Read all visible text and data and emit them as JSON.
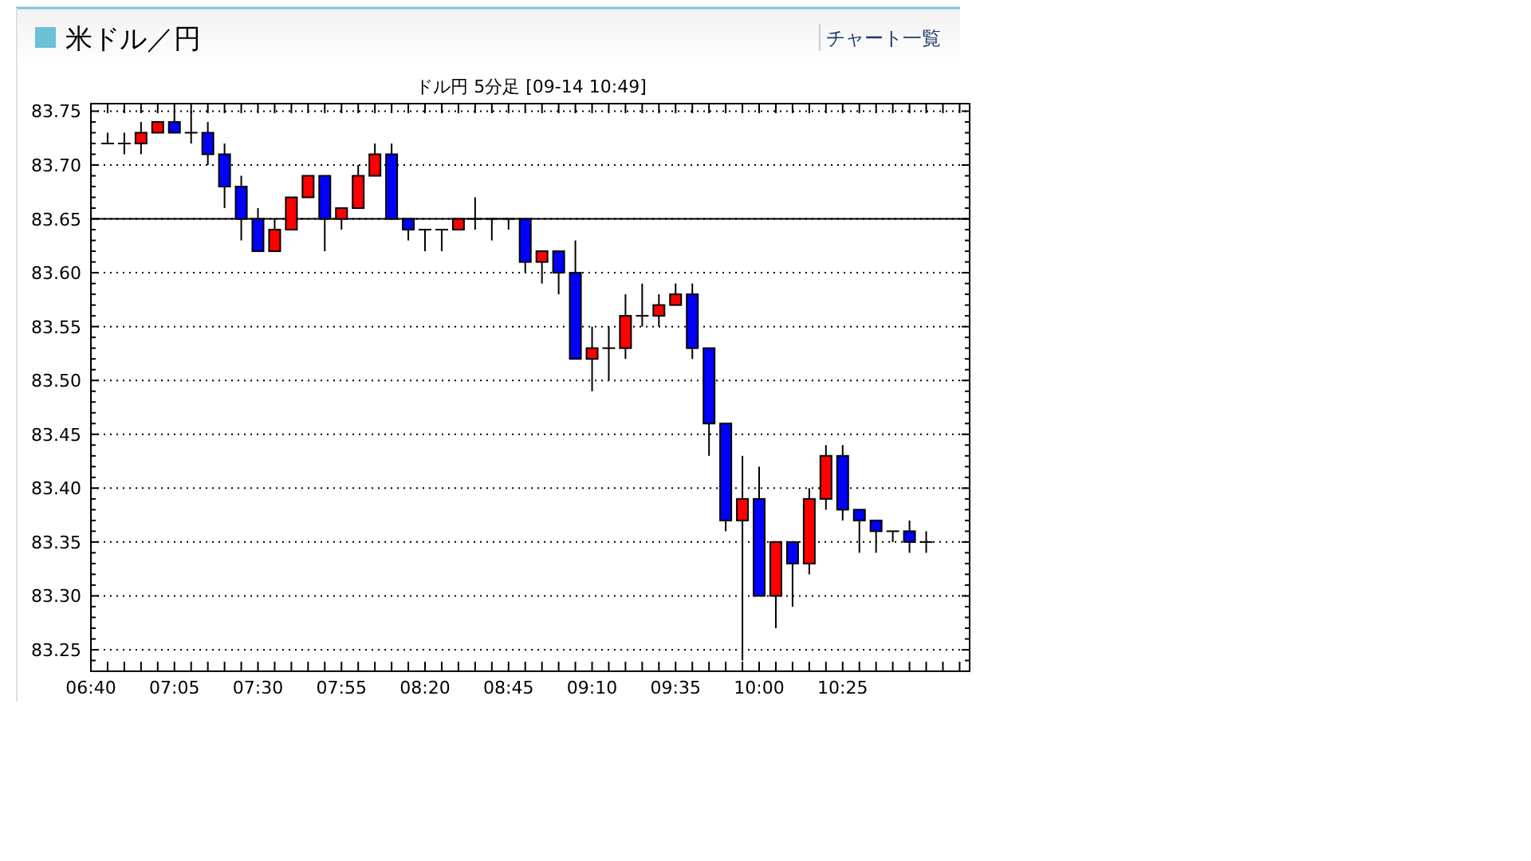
{
  "chart_data": {
    "type": "candlestick",
    "title": "米ドル／円",
    "subtitle": "ドル円 5分足 [09-14  10:49]",
    "annotations": [
      "チャート一覧"
    ],
    "x": [
      6.75,
      6.8333,
      6.9167,
      7,
      7.0833,
      7.1667,
      7.25,
      7.3333,
      7.4167,
      7.5,
      7.5833,
      7.6667,
      7.75,
      7.8333,
      7.9167,
      8,
      8.0833,
      8.1667,
      8.25,
      8.3333,
      8.4167,
      8.5,
      8.5833,
      8.6667,
      8.75,
      8.8333,
      8.9167,
      9,
      9.0833,
      9.1667,
      9.25,
      9.3333,
      9.4167,
      9.5,
      9.5833,
      9.6667,
      9.75,
      9.8333,
      9.9167,
      10,
      10.0833,
      10.1667,
      10.25,
      10.3333,
      10.4167,
      10.5,
      10.5833,
      10.6667,
      10.75,
      10.8333
    ],
    "ohlc": [
      [
        83.72,
        83.73,
        83.72,
        83.72
      ],
      [
        83.72,
        83.73,
        83.71,
        83.72
      ],
      [
        83.72,
        83.74,
        83.71,
        83.73
      ],
      [
        83.73,
        83.74,
        83.73,
        83.74
      ],
      [
        83.74,
        83.75,
        83.73,
        83.73
      ],
      [
        83.73,
        83.75,
        83.72,
        83.73
      ],
      [
        83.73,
        83.74,
        83.7,
        83.71
      ],
      [
        83.71,
        83.72,
        83.66,
        83.68
      ],
      [
        83.68,
        83.69,
        83.63,
        83.65
      ],
      [
        83.65,
        83.66,
        83.62,
        83.62
      ],
      [
        83.62,
        83.65,
        83.62,
        83.64
      ],
      [
        83.64,
        83.67,
        83.64,
        83.67
      ],
      [
        83.67,
        83.69,
        83.67,
        83.69
      ],
      [
        83.69,
        83.69,
        83.62,
        83.65
      ],
      [
        83.65,
        83.66,
        83.64,
        83.66
      ],
      [
        83.66,
        83.7,
        83.66,
        83.69
      ],
      [
        83.69,
        83.72,
        83.69,
        83.71
      ],
      [
        83.71,
        83.72,
        83.65,
        83.65
      ],
      [
        83.65,
        83.65,
        83.63,
        83.64
      ],
      [
        83.64,
        83.64,
        83.62,
        83.64
      ],
      [
        83.64,
        83.64,
        83.62,
        83.64
      ],
      [
        83.64,
        83.65,
        83.64,
        83.65
      ],
      [
        83.65,
        83.67,
        83.64,
        83.65
      ],
      [
        83.65,
        83.65,
        83.63,
        83.65
      ],
      [
        83.65,
        83.65,
        83.64,
        83.65
      ],
      [
        83.65,
        83.65,
        83.6,
        83.61
      ],
      [
        83.61,
        83.62,
        83.59,
        83.62
      ],
      [
        83.62,
        83.62,
        83.58,
        83.6
      ],
      [
        83.6,
        83.63,
        83.52,
        83.52
      ],
      [
        83.52,
        83.55,
        83.49,
        83.53
      ],
      [
        83.53,
        83.55,
        83.5,
        83.53
      ],
      [
        83.53,
        83.58,
        83.52,
        83.56
      ],
      [
        83.56,
        83.59,
        83.55,
        83.56
      ],
      [
        83.56,
        83.58,
        83.55,
        83.57
      ],
      [
        83.57,
        83.59,
        83.57,
        83.58
      ],
      [
        83.58,
        83.59,
        83.52,
        83.53
      ],
      [
        83.53,
        83.53,
        83.43,
        83.46
      ],
      [
        83.46,
        83.46,
        83.36,
        83.37
      ],
      [
        83.37,
        83.43,
        83.24,
        83.39
      ],
      [
        83.39,
        83.42,
        83.3,
        83.3
      ],
      [
        83.3,
        83.35,
        83.27,
        83.35
      ],
      [
        83.35,
        83.35,
        83.29,
        83.33
      ],
      [
        83.33,
        83.4,
        83.32,
        83.39
      ],
      [
        83.39,
        83.44,
        83.38,
        83.43
      ],
      [
        83.43,
        83.44,
        83.37,
        83.38
      ],
      [
        83.38,
        83.38,
        83.34,
        83.37
      ],
      [
        83.37,
        83.37,
        83.34,
        83.36
      ],
      [
        83.36,
        83.36,
        83.35,
        83.36
      ],
      [
        83.36,
        83.37,
        83.34,
        83.35
      ],
      [
        83.35,
        83.36,
        83.34,
        83.35
      ]
    ],
    "colors": [
      "#000000",
      "#000000",
      "#ff0000",
      "#ff0000",
      "#0000ff",
      "#000000",
      "#0000ff",
      "#0000ff",
      "#0000ff",
      "#0000ff",
      "#ff0000",
      "#ff0000",
      "#ff0000",
      "#0000ff",
      "#ff0000",
      "#ff0000",
      "#ff0000",
      "#0000ff",
      "#0000ff",
      "#000000",
      "#000000",
      "#ff0000",
      "#000000",
      "#000000",
      "#000000",
      "#0000ff",
      "#ff0000",
      "#0000ff",
      "#0000ff",
      "#ff0000",
      "#000000",
      "#ff0000",
      "#000000",
      "#ff0000",
      "#ff0000",
      "#0000ff",
      "#0000ff",
      "#0000ff",
      "#ff0000",
      "#0000ff",
      "#ff0000",
      "#0000ff",
      "#ff0000",
      "#ff0000",
      "#0000ff",
      "#0000ff",
      "#0000ff",
      "#000000",
      "#0000ff",
      "#000000"
    ],
    "xlim": [
      6.6667,
      11.05
    ],
    "xticks": [
      {
        "value": 6.6667,
        "label": "06:40"
      },
      {
        "value": 6.75,
        "label": null
      },
      {
        "value": 6.8333,
        "label": null
      },
      {
        "value": 6.9167,
        "label": null
      },
      {
        "value": 7,
        "label": null
      },
      {
        "value": 7.0833,
        "label": "07:05"
      },
      {
        "value": 7.1667,
        "label": null
      },
      {
        "value": 7.25,
        "label": null
      },
      {
        "value": 7.3333,
        "label": null
      },
      {
        "value": 7.4167,
        "label": null
      },
      {
        "value": 7.5,
        "label": "07:30"
      },
      {
        "value": 7.5833,
        "label": null
      },
      {
        "value": 7.6667,
        "label": null
      },
      {
        "value": 7.75,
        "label": null
      },
      {
        "value": 7.8333,
        "label": null
      },
      {
        "value": 7.9167,
        "label": "07:55"
      },
      {
        "value": 8,
        "label": null
      },
      {
        "value": 8.0833,
        "label": null
      },
      {
        "value": 8.1667,
        "label": null
      },
      {
        "value": 8.25,
        "label": null
      },
      {
        "value": 8.3333,
        "label": "08:20"
      },
      {
        "value": 8.4167,
        "label": null
      },
      {
        "value": 8.5,
        "label": null
      },
      {
        "value": 8.5833,
        "label": null
      },
      {
        "value": 8.6667,
        "label": null
      },
      {
        "value": 8.75,
        "label": "08:45"
      },
      {
        "value": 8.8333,
        "label": null
      },
      {
        "value": 8.9167,
        "label": null
      },
      {
        "value": 9,
        "label": null
      },
      {
        "value": 9.0833,
        "label": null
      },
      {
        "value": 9.1667,
        "label": "09:10"
      },
      {
        "value": 9.25,
        "label": null
      },
      {
        "value": 9.3333,
        "label": null
      },
      {
        "value": 9.4167,
        "label": null
      },
      {
        "value": 9.5,
        "label": null
      },
      {
        "value": 9.5833,
        "label": "09:35"
      },
      {
        "value": 9.6667,
        "label": null
      },
      {
        "value": 9.75,
        "label": null
      },
      {
        "value": 9.8333,
        "label": null
      },
      {
        "value": 9.9167,
        "label": null
      },
      {
        "value": 10,
        "label": "10:00"
      },
      {
        "value": 10.0833,
        "label": null
      },
      {
        "value": 10.1667,
        "label": null
      },
      {
        "value": 10.25,
        "label": null
      },
      {
        "value": 10.3333,
        "label": null
      },
      {
        "value": 10.4167,
        "label": "10:25"
      },
      {
        "value": 10.5,
        "label": null
      },
      {
        "value": 10.5833,
        "label": null
      },
      {
        "value": 10.6667,
        "label": null
      },
      {
        "value": 10.75,
        "label": null
      },
      {
        "value": 10.8333,
        "label": null
      },
      {
        "value": 10.9167,
        "label": null
      },
      {
        "value": 11,
        "label": null
      }
    ],
    "ylim": [
      83.23,
      83.757
    ],
    "yticks": [
      {
        "value": 83.24,
        "label": null
      },
      {
        "value": 83.25,
        "label": "83.25"
      },
      {
        "value": 83.26,
        "label": null
      },
      {
        "value": 83.27,
        "label": null
      },
      {
        "value": 83.28,
        "label": null
      },
      {
        "value": 83.29,
        "label": null
      },
      {
        "value": 83.3,
        "label": "83.30"
      },
      {
        "value": 83.31,
        "label": null
      },
      {
        "value": 83.32,
        "label": null
      },
      {
        "value": 83.33,
        "label": null
      },
      {
        "value": 83.34,
        "label": null
      },
      {
        "value": 83.35,
        "label": "83.35"
      },
      {
        "value": 83.36,
        "label": null
      },
      {
        "value": 83.37,
        "label": null
      },
      {
        "value": 83.38,
        "label": null
      },
      {
        "value": 83.39,
        "label": null
      },
      {
        "value": 83.4,
        "label": "83.40"
      },
      {
        "value": 83.41,
        "label": null
      },
      {
        "value": 83.42,
        "label": null
      },
      {
        "value": 83.43,
        "label": null
      },
      {
        "value": 83.44,
        "label": null
      },
      {
        "value": 83.45,
        "label": "83.45"
      },
      {
        "value": 83.46,
        "label": null
      },
      {
        "value": 83.47,
        "label": null
      },
      {
        "value": 83.48,
        "label": null
      },
      {
        "value": 83.49,
        "label": null
      },
      {
        "value": 83.5,
        "label": "83.50"
      },
      {
        "value": 83.51,
        "label": null
      },
      {
        "value": 83.52,
        "label": null
      },
      {
        "value": 83.53,
        "label": null
      },
      {
        "value": 83.54,
        "label": null
      },
      {
        "value": 83.55,
        "label": "83.55"
      },
      {
        "value": 83.56,
        "label": null
      },
      {
        "value": 83.57,
        "label": null
      },
      {
        "value": 83.58,
        "label": null
      },
      {
        "value": 83.59,
        "label": null
      },
      {
        "value": 83.6,
        "label": "83.60"
      },
      {
        "value": 83.61,
        "label": null
      },
      {
        "value": 83.62,
        "label": null
      },
      {
        "value": 83.63,
        "label": null
      },
      {
        "value": 83.64,
        "label": null
      },
      {
        "value": 83.65,
        "label": "83.65"
      },
      {
        "value": 83.66,
        "label": null
      },
      {
        "value": 83.67,
        "label": null
      },
      {
        "value": 83.68,
        "label": null
      },
      {
        "value": 83.69,
        "label": null
      },
      {
        "value": 83.7,
        "label": "83.70"
      },
      {
        "value": 83.71,
        "label": null
      },
      {
        "value": 83.72,
        "label": null
      },
      {
        "value": 83.73,
        "label": null
      },
      {
        "value": 83.74,
        "label": null
      },
      {
        "value": 83.75,
        "label": "83.75"
      }
    ],
    "ref_lines": [
      {
        "axis": "y",
        "value": 83.65,
        "color": "#000000",
        "line_style": "solid"
      }
    ],
    "grid": "y"
  }
}
